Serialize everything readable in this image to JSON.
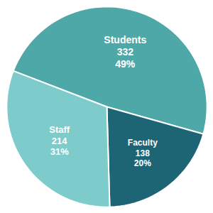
{
  "chart_data": {
    "type": "pie",
    "categories": [
      "Students",
      "Faculty",
      "Staff"
    ],
    "values": [
      332,
      138,
      214
    ],
    "percents": [
      49,
      20,
      31
    ],
    "percent_labels": [
      "49%",
      "20%",
      "31%"
    ],
    "colors": [
      "#4EA8A8",
      "#1D6575",
      "#7DCBCB"
    ],
    "data_labels": true
  }
}
